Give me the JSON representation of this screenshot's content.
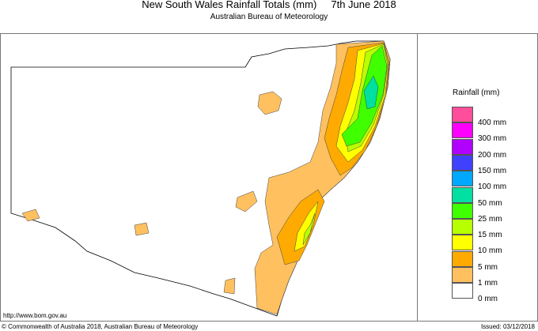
{
  "title": "New South Wales Rainfall Totals (mm)     7th June 2018",
  "subtitle": "Australian Bureau of Meteorology",
  "url": "http://www.bom.gov.au",
  "copyright": "© Commonwealth of Australia 2018, Australian Bureau of Meteorology",
  "issued": "Issued: 03/12/2018",
  "legend": {
    "title": "Rainfall (mm)",
    "swatches": [
      "#ff4f9a",
      "#ff00ff",
      "#b000ff",
      "#4040ff",
      "#00a8ff",
      "#00e0a0",
      "#40ff00",
      "#b8ff00",
      "#ffff00",
      "#ffaa00",
      "#ffc060",
      "#ffffff"
    ],
    "labels": [
      "400 mm",
      "300 mm",
      "200 mm",
      "150 mm",
      "100 mm",
      "50 mm",
      "25 mm",
      "15 mm",
      "10 mm",
      "5 mm",
      "1 mm",
      "0 mm"
    ]
  }
}
